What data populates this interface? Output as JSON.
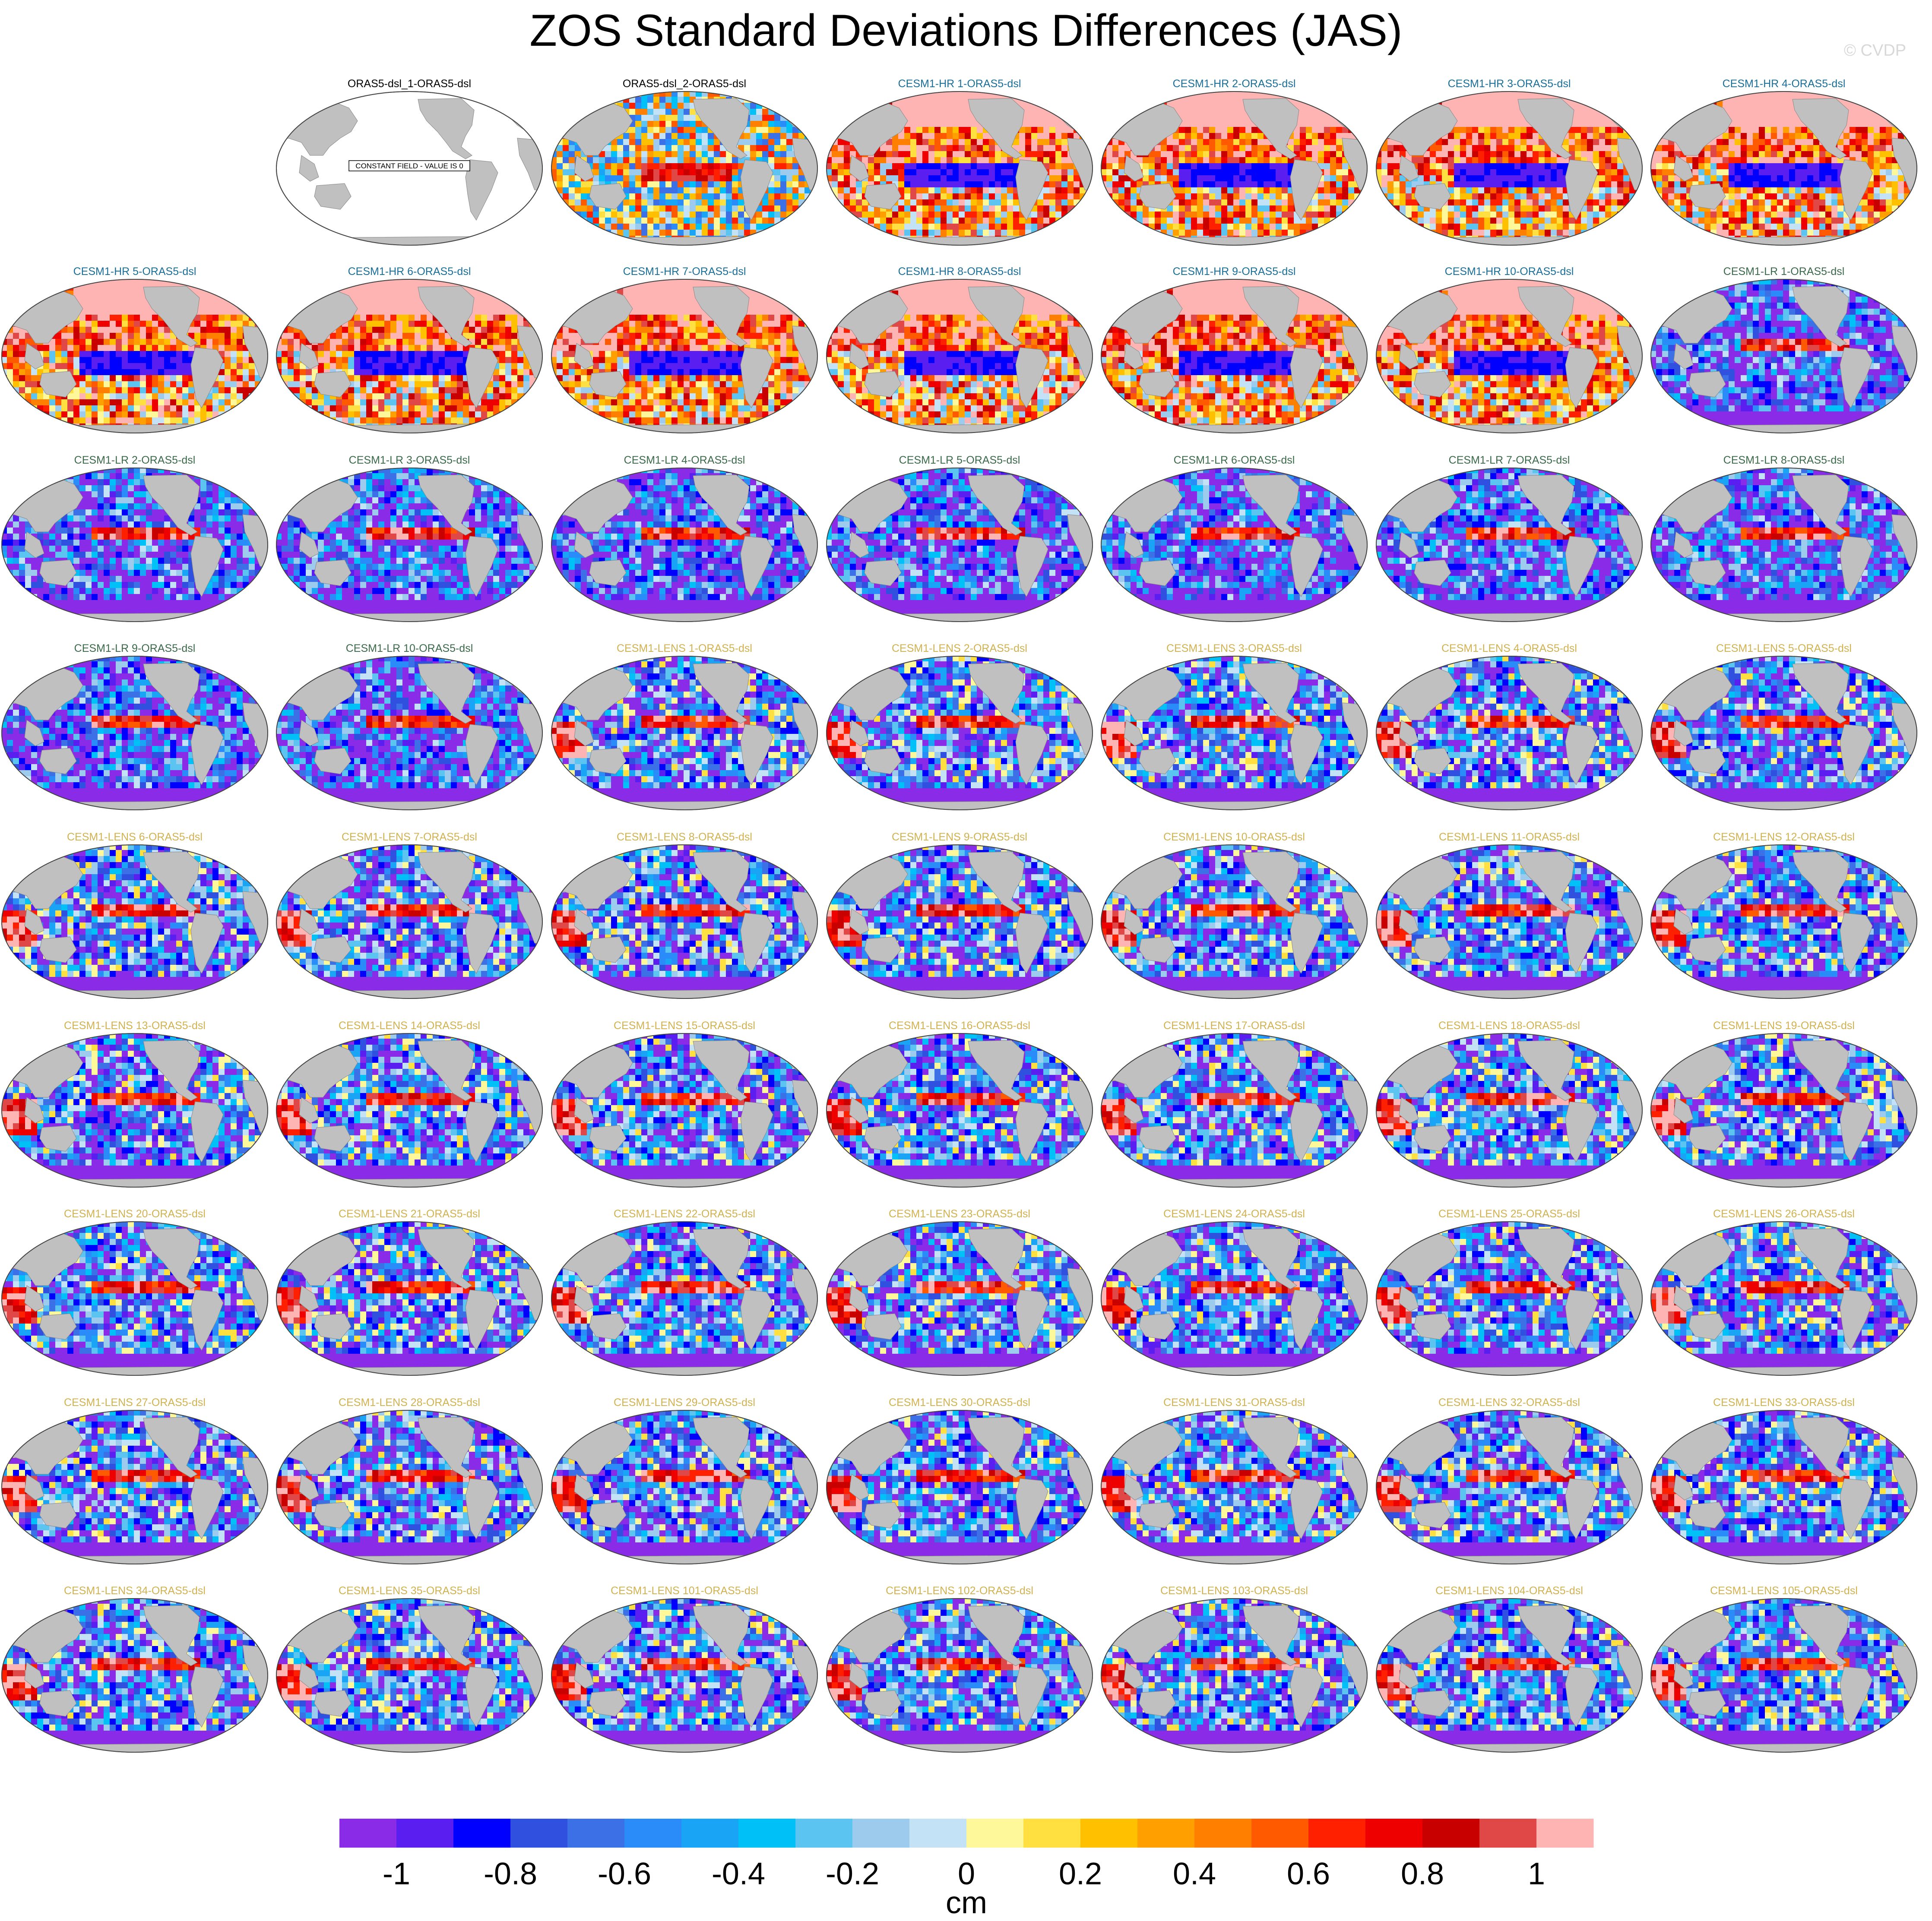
{
  "title": "ZOS Standard Deviations Differences (JAS)",
  "credit": "© CVDP",
  "constant_note": "CONSTANT FIELD - VALUE IS 0",
  "chart_data": {
    "type": "heatmap",
    "title": "ZOS Standard Deviations Differences (JAS)",
    "projection": "global map panels",
    "units": "cm",
    "colorbar": {
      "min": -1.1,
      "max": 1.1,
      "boundaries": [
        -1.0,
        -0.9,
        -0.8,
        -0.7,
        -0.6,
        -0.5,
        -0.4,
        -0.3,
        -0.2,
        -0.1,
        0.0,
        0.1,
        0.2,
        0.3,
        0.4,
        0.5,
        0.6,
        0.7,
        0.8,
        0.9,
        1.0
      ],
      "colors": [
        "#8a2be8",
        "#5a1ef0",
        "#0000ff",
        "#3050e0",
        "#3c70e6",
        "#2a8cf8",
        "#1aa4f6",
        "#00c0f8",
        "#5cc4f0",
        "#9ccbee",
        "#c4e2f6",
        "#fff89a",
        "#ffe040",
        "#ffc000",
        "#ffa000",
        "#ff8000",
        "#ff5a00",
        "#ff2000",
        "#ee0000",
        "#c80000",
        "#e04848",
        "#ffb4b4"
      ],
      "tick_labels": [
        "-1",
        "-0.8",
        "-0.6",
        "-0.4",
        "-0.2",
        "0",
        "0.2",
        "0.4",
        "0.6",
        "0.8",
        "1"
      ],
      "tick_values": [
        -1,
        -0.8,
        -0.6,
        -0.4,
        -0.2,
        0,
        0.2,
        0.4,
        0.6,
        0.8,
        1
      ]
    },
    "panels": [
      {
        "name": "ORAS5-dsl_1-ORAS5-dsl",
        "group": "ORAS5",
        "constant": true
      },
      {
        "name": "ORAS5-dsl_2-ORAS5-dsl",
        "group": "ORAS5"
      },
      {
        "name": "CESM1-HR 1-ORAS5-dsl",
        "group": "HR"
      },
      {
        "name": "CESM1-HR 2-ORAS5-dsl",
        "group": "HR"
      },
      {
        "name": "CESM1-HR 3-ORAS5-dsl",
        "group": "HR"
      },
      {
        "name": "CESM1-HR 4-ORAS5-dsl",
        "group": "HR"
      },
      {
        "name": "CESM1-HR 5-ORAS5-dsl",
        "group": "HR"
      },
      {
        "name": "CESM1-HR 6-ORAS5-dsl",
        "group": "HR"
      },
      {
        "name": "CESM1-HR 7-ORAS5-dsl",
        "group": "HR"
      },
      {
        "name": "CESM1-HR 8-ORAS5-dsl",
        "group": "HR"
      },
      {
        "name": "CESM1-HR 9-ORAS5-dsl",
        "group": "HR"
      },
      {
        "name": "CESM1-HR 10-ORAS5-dsl",
        "group": "HR"
      },
      {
        "name": "CESM1-LR 1-ORAS5-dsl",
        "group": "LR"
      },
      {
        "name": "CESM1-LR 2-ORAS5-dsl",
        "group": "LR"
      },
      {
        "name": "CESM1-LR 3-ORAS5-dsl",
        "group": "LR"
      },
      {
        "name": "CESM1-LR 4-ORAS5-dsl",
        "group": "LR"
      },
      {
        "name": "CESM1-LR 5-ORAS5-dsl",
        "group": "LR"
      },
      {
        "name": "CESM1-LR 6-ORAS5-dsl",
        "group": "LR"
      },
      {
        "name": "CESM1-LR 7-ORAS5-dsl",
        "group": "LR"
      },
      {
        "name": "CESM1-LR 8-ORAS5-dsl",
        "group": "LR"
      },
      {
        "name": "CESM1-LR 9-ORAS5-dsl",
        "group": "LR"
      },
      {
        "name": "CESM1-LR 10-ORAS5-dsl",
        "group": "LR"
      },
      {
        "name": "CESM1-LENS 1-ORAS5-dsl",
        "group": "LENS"
      },
      {
        "name": "CESM1-LENS 2-ORAS5-dsl",
        "group": "LENS"
      },
      {
        "name": "CESM1-LENS 3-ORAS5-dsl",
        "group": "LENS"
      },
      {
        "name": "CESM1-LENS 4-ORAS5-dsl",
        "group": "LENS"
      },
      {
        "name": "CESM1-LENS 5-ORAS5-dsl",
        "group": "LENS"
      },
      {
        "name": "CESM1-LENS 6-ORAS5-dsl",
        "group": "LENS"
      },
      {
        "name": "CESM1-LENS 7-ORAS5-dsl",
        "group": "LENS"
      },
      {
        "name": "CESM1-LENS 8-ORAS5-dsl",
        "group": "LENS"
      },
      {
        "name": "CESM1-LENS 9-ORAS5-dsl",
        "group": "LENS"
      },
      {
        "name": "CESM1-LENS 10-ORAS5-dsl",
        "group": "LENS"
      },
      {
        "name": "CESM1-LENS 11-ORAS5-dsl",
        "group": "LENS"
      },
      {
        "name": "CESM1-LENS 12-ORAS5-dsl",
        "group": "LENS"
      },
      {
        "name": "CESM1-LENS 13-ORAS5-dsl",
        "group": "LENS"
      },
      {
        "name": "CESM1-LENS 14-ORAS5-dsl",
        "group": "LENS"
      },
      {
        "name": "CESM1-LENS 15-ORAS5-dsl",
        "group": "LENS"
      },
      {
        "name": "CESM1-LENS 16-ORAS5-dsl",
        "group": "LENS"
      },
      {
        "name": "CESM1-LENS 17-ORAS5-dsl",
        "group": "LENS"
      },
      {
        "name": "CESM1-LENS 18-ORAS5-dsl",
        "group": "LENS"
      },
      {
        "name": "CESM1-LENS 19-ORAS5-dsl",
        "group": "LENS"
      },
      {
        "name": "CESM1-LENS 20-ORAS5-dsl",
        "group": "LENS"
      },
      {
        "name": "CESM1-LENS 21-ORAS5-dsl",
        "group": "LENS"
      },
      {
        "name": "CESM1-LENS 22-ORAS5-dsl",
        "group": "LENS"
      },
      {
        "name": "CESM1-LENS 23-ORAS5-dsl",
        "group": "LENS"
      },
      {
        "name": "CESM1-LENS 24-ORAS5-dsl",
        "group": "LENS"
      },
      {
        "name": "CESM1-LENS 25-ORAS5-dsl",
        "group": "LENS"
      },
      {
        "name": "CESM1-LENS 26-ORAS5-dsl",
        "group": "LENS"
      },
      {
        "name": "CESM1-LENS 27-ORAS5-dsl",
        "group": "LENS"
      },
      {
        "name": "CESM1-LENS 28-ORAS5-dsl",
        "group": "LENS"
      },
      {
        "name": "CESM1-LENS 29-ORAS5-dsl",
        "group": "LENS"
      },
      {
        "name": "CESM1-LENS 30-ORAS5-dsl",
        "group": "LENS"
      },
      {
        "name": "CESM1-LENS 31-ORAS5-dsl",
        "group": "LENS"
      },
      {
        "name": "CESM1-LENS 32-ORAS5-dsl",
        "group": "LENS"
      },
      {
        "name": "CESM1-LENS 33-ORAS5-dsl",
        "group": "LENS"
      },
      {
        "name": "CESM1-LENS 34-ORAS5-dsl",
        "group": "LENS"
      },
      {
        "name": "CESM1-LENS 35-ORAS5-dsl",
        "group": "LENS"
      },
      {
        "name": "CESM1-LENS 101-ORAS5-dsl",
        "group": "LENS"
      },
      {
        "name": "CESM1-LENS 102-ORAS5-dsl",
        "group": "LENS"
      },
      {
        "name": "CESM1-LENS 103-ORAS5-dsl",
        "group": "LENS"
      },
      {
        "name": "CESM1-LENS 104-ORAS5-dsl",
        "group": "LENS"
      },
      {
        "name": "CESM1-LENS 105-ORAS5-dsl",
        "group": "LENS"
      }
    ],
    "group_title_colors": {
      "ORAS5": "#000000",
      "HR": "#1a6e9a",
      "LR": "#3a6a4a",
      "LENS": "#d2b250"
    },
    "ocean_color": "#ffffff",
    "land_color": "#c0c0c0"
  }
}
